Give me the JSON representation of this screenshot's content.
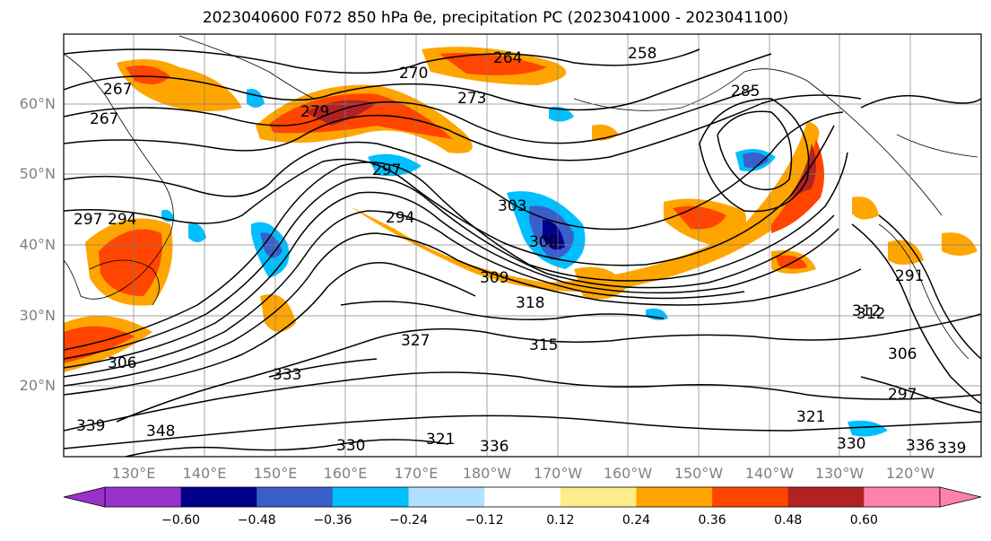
{
  "title": "2023040600 F072 850 hPa θe, precipitation PC (2023041000 - 2023041100)",
  "map": {
    "lat_labels": [
      "60°N",
      "50°N",
      "40°N",
      "30°N",
      "20°N"
    ],
    "lon_labels": [
      "130°E",
      "140°E",
      "150°E",
      "160°E",
      "170°E",
      "180°W",
      "170°W",
      "160°W",
      "150°W",
      "140°W",
      "130°W",
      "120°W"
    ],
    "contour_labels": [
      "267",
      "270",
      "273",
      "258",
      "264",
      "267",
      "279",
      "285",
      "297",
      "294",
      "297",
      "303",
      "300",
      "306",
      "309",
      "315",
      "318",
      "312",
      "321",
      "327",
      "333",
      "330",
      "336",
      "339",
      "348",
      "306",
      "321",
      "330",
      "336",
      "339",
      "291",
      "294",
      "297",
      "312"
    ]
  },
  "colorbar": {
    "ticks": [
      "−0.60",
      "−0.48",
      "−0.36",
      "−0.24",
      "−0.12",
      "0.12",
      "0.24",
      "0.36",
      "0.48",
      "0.60"
    ],
    "colors": [
      "#9932cc",
      "#00008b",
      "#3a5fcd",
      "#00bfff",
      "#b0e2ff",
      "#ffffff",
      "#ffec8b",
      "#ffa500",
      "#ff4500",
      "#b22222",
      "#ff82ab"
    ]
  }
}
